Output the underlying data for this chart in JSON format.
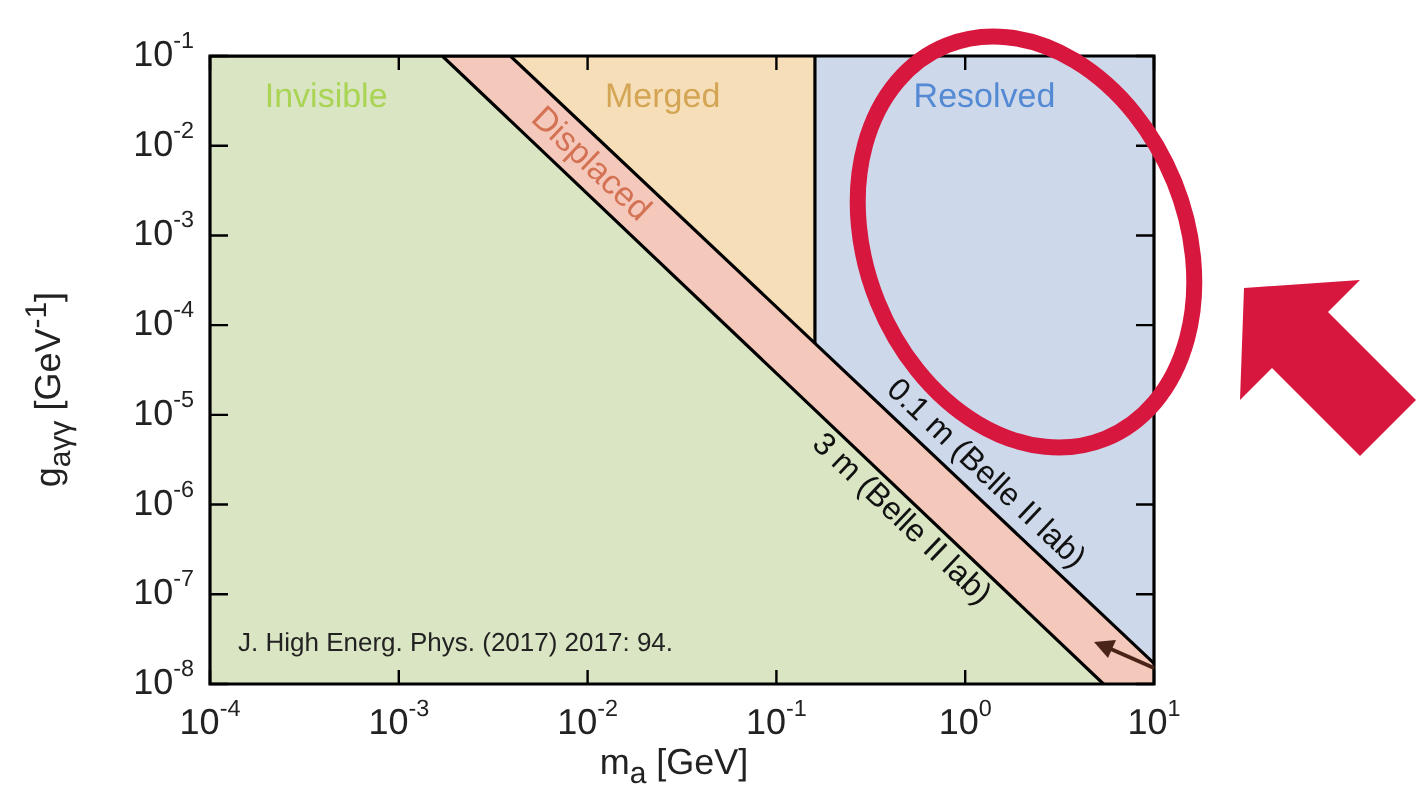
{
  "chart_data": {
    "type": "area",
    "xlabel": "m$_{a}$ [GeV]",
    "ylabel": "g$_{aγγ}$ [GeV$^{-1}$]",
    "series": [
      {
        "name": "Displaced",
        "color": "#f4c8bb",
        "x": [
          0.0001,
          0.0039,
          10
        ],
        "values": [
          0.1,
          0.1,
          1.7e-08
        ]
      },
      {
        "name": "Invisible",
        "color": "#dae5c4",
        "x": [
          0.0001,
          0.0017,
          5.4
        ],
        "values": [
          0.1,
          0.1,
          1e-08
        ]
      }
    ],
    "bands": [
      {
        "axis": "x",
        "from": 0.0001,
        "to": 0.16,
        "color": "#f6dfb8",
        "label": "Merged"
      },
      {
        "axis": "x",
        "from": 0.16,
        "to": 10,
        "color": "#cdd9ea",
        "label": "Resolved"
      }
    ],
    "ref_lines": [
      {
        "axis": "x",
        "value": 0.16,
        "color": "#000000"
      }
    ],
    "log": "xy",
    "xlim": [
      0.0001,
      10
    ],
    "ylim": [
      1e-08,
      0.1
    ],
    "xticks": [
      {
        "value": 0.0001,
        "label": "10$^{-4}$"
      },
      {
        "value": 0.001,
        "label": "10$^{-3}$"
      },
      {
        "value": 0.01,
        "label": "10$^{-2}$"
      },
      {
        "value": 0.1,
        "label": "10$^{-1}$"
      },
      {
        "value": 1,
        "label": "10$^{0}$"
      },
      {
        "value": 10,
        "label": "10$^{1}$"
      }
    ],
    "yticks": [
      {
        "value": 1e-08,
        "label": "10$^{-8}$"
      },
      {
        "value": 1e-07,
        "label": "10$^{-7}$"
      },
      {
        "value": 1e-06,
        "label": "10$^{-6}$"
      },
      {
        "value": 1e-05,
        "label": "10$^{-5}$"
      },
      {
        "value": 0.0001,
        "label": "10$^{-4}$"
      },
      {
        "value": 0.001,
        "label": "10$^{-3}$"
      },
      {
        "value": 0.01,
        "label": "10$^{-2}$"
      },
      {
        "value": 0.1,
        "label": "10$^{-1}$"
      }
    ],
    "grid": false,
    "legend": "top left",
    "annotations": [
      "0.1 m (Belle II lab)",
      "3 m (Belle II lab)",
      "J. High Energ. Phys. (2017) 2017: 94."
    ]
  }
}
